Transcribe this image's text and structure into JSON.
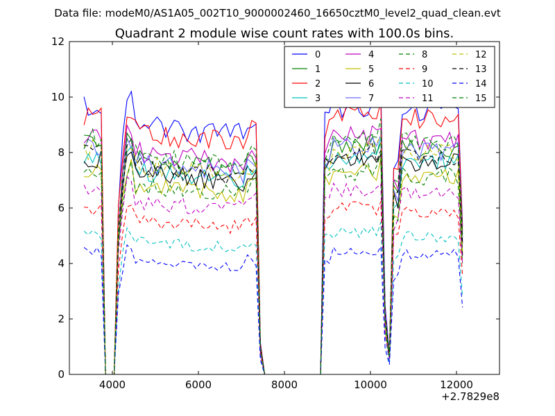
{
  "chart_data": {
    "type": "line",
    "suptitle": "Data file: modeM0/AS1A05_002T10_9000002460_16650cztM0_level2_quad_clean.evt",
    "title": "Quadrant 2 module wise count rates with 100.0s bins.",
    "xlabel": "",
    "ylabel": "",
    "x_offset_label": "+2.7829e8",
    "xlim": [
      3000,
      13000
    ],
    "ylim": [
      0,
      12
    ],
    "x_ticks": [
      "4000",
      "6000",
      "8000",
      "10000",
      "12000"
    ],
    "y_ticks": [
      "0",
      "2",
      "4",
      "6",
      "8",
      "10",
      "12"
    ],
    "legend_position": "top-right",
    "bins": {
      "segments": [
        {
          "start": 3340,
          "end": 3740
        },
        {
          "start": 3840,
          "end": 4040
        },
        {
          "start": 4140,
          "end": 7540
        },
        {
          "start": 7640,
          "end": 8840
        },
        {
          "start": 8940,
          "end": 10540
        },
        {
          "start": 10640,
          "end": 12140
        }
      ],
      "step": 100
    },
    "series": [
      {
        "name": "0",
        "color": "#0000ff",
        "dash": "solid",
        "level": 9.7,
        "seed": 11
      },
      {
        "name": "1",
        "color": "#008000",
        "dash": "solid",
        "level": 8.3,
        "seed": 12
      },
      {
        "name": "2",
        "color": "#ff0000",
        "dash": "solid",
        "level": 9.4,
        "seed": 13
      },
      {
        "name": "3",
        "color": "#00bfbf",
        "dash": "solid",
        "level": 7.9,
        "seed": 14
      },
      {
        "name": "4",
        "color": "#bf00bf",
        "dash": "solid",
        "level": 8.6,
        "seed": 15
      },
      {
        "name": "5",
        "color": "#bfbf00",
        "dash": "solid",
        "level": 7.3,
        "seed": 16
      },
      {
        "name": "6",
        "color": "#000000",
        "dash": "solid",
        "level": 7.8,
        "seed": 17
      },
      {
        "name": "7",
        "color": "#6a6aff",
        "dash": "solid",
        "level": 8.2,
        "seed": 18
      },
      {
        "name": "8",
        "color": "#008000",
        "dash": "dashed",
        "level": 7.3,
        "seed": 19
      },
      {
        "name": "9",
        "color": "#ff0000",
        "dash": "dashed",
        "level": 6.0,
        "seed": 20
      },
      {
        "name": "10",
        "color": "#00bfbf",
        "dash": "dashed",
        "level": 5.1,
        "seed": 21
      },
      {
        "name": "11",
        "color": "#bf00bf",
        "dash": "dashed",
        "level": 6.7,
        "seed": 22
      },
      {
        "name": "12",
        "color": "#bfbf00",
        "dash": "dashed",
        "level": 8.1,
        "seed": 23
      },
      {
        "name": "13",
        "color": "#000000",
        "dash": "dashed",
        "level": 8.0,
        "seed": 24
      },
      {
        "name": "14",
        "color": "#0000ff",
        "dash": "dashed",
        "level": 4.4,
        "seed": 25
      },
      {
        "name": "15",
        "color": "#008000",
        "dash": "dashed",
        "level": 8.5,
        "seed": 26
      }
    ]
  }
}
